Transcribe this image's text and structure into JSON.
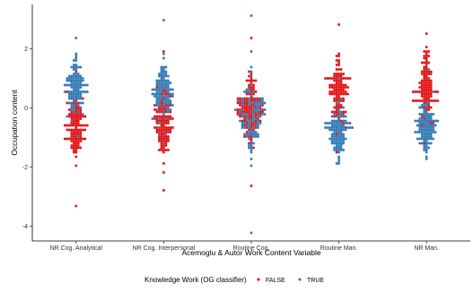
{
  "chart_data": {
    "type": "scatter",
    "subtype": "beeswarm",
    "xlabel": "Acemoglu & Autor Work Content Variable",
    "ylabel": "Occupation content",
    "categories": [
      "NR Cog. Analytical",
      "NR Cog. Interpersonal",
      "Routine Cog.",
      "Routine Man.",
      "NR Man."
    ],
    "ylim": [
      -4.5,
      3.5
    ],
    "yticks": [
      2,
      0,
      -2,
      -4
    ],
    "ytick_labels": [
      "2",
      "0",
      "-2",
      "-4"
    ],
    "grid": false,
    "legend": {
      "title": "Knowledge Work (OG classifier)",
      "position": "bottom",
      "entries": [
        "FALSE",
        "TRUE"
      ]
    },
    "series": [
      {
        "name": "FALSE",
        "color": "#E41A1C",
        "groups": [
          {
            "category": "NR Cog. Analytical",
            "min": -3.3,
            "max": 1.2,
            "mean": -0.75,
            "sd": 0.75
          },
          {
            "category": "NR Cog. Interpersonal",
            "min": -2.8,
            "max": 1.9,
            "mean": -0.55,
            "sd": 0.8
          },
          {
            "category": "Routine Cog.",
            "min": -2.6,
            "max": 2.4,
            "mean": 0.0,
            "sd": 0.75
          },
          {
            "category": "Routine Man.",
            "min": -1.5,
            "max": 2.8,
            "mean": 0.65,
            "sd": 0.8
          },
          {
            "category": "NR Man.",
            "min": -1.2,
            "max": 2.5,
            "mean": 0.8,
            "sd": 0.75
          }
        ]
      },
      {
        "name": "TRUE",
        "color": "#377EB8",
        "groups": [
          {
            "category": "NR Cog. Analytical",
            "min": -1.0,
            "max": 2.4,
            "mean": 0.75,
            "sd": 0.65
          },
          {
            "category": "NR Cog. Interpersonal",
            "min": -1.2,
            "max": 3.0,
            "mean": 0.6,
            "sd": 0.75
          },
          {
            "category": "Routine Cog.",
            "min": -4.2,
            "max": 3.1,
            "mean": -0.3,
            "sd": 1.0
          },
          {
            "category": "Routine Man.",
            "min": -1.9,
            "max": 1.0,
            "mean": -0.8,
            "sd": 0.6
          },
          {
            "category": "NR Man.",
            "min": -1.7,
            "max": 1.3,
            "mean": -0.65,
            "sd": 0.6
          }
        ]
      }
    ]
  }
}
